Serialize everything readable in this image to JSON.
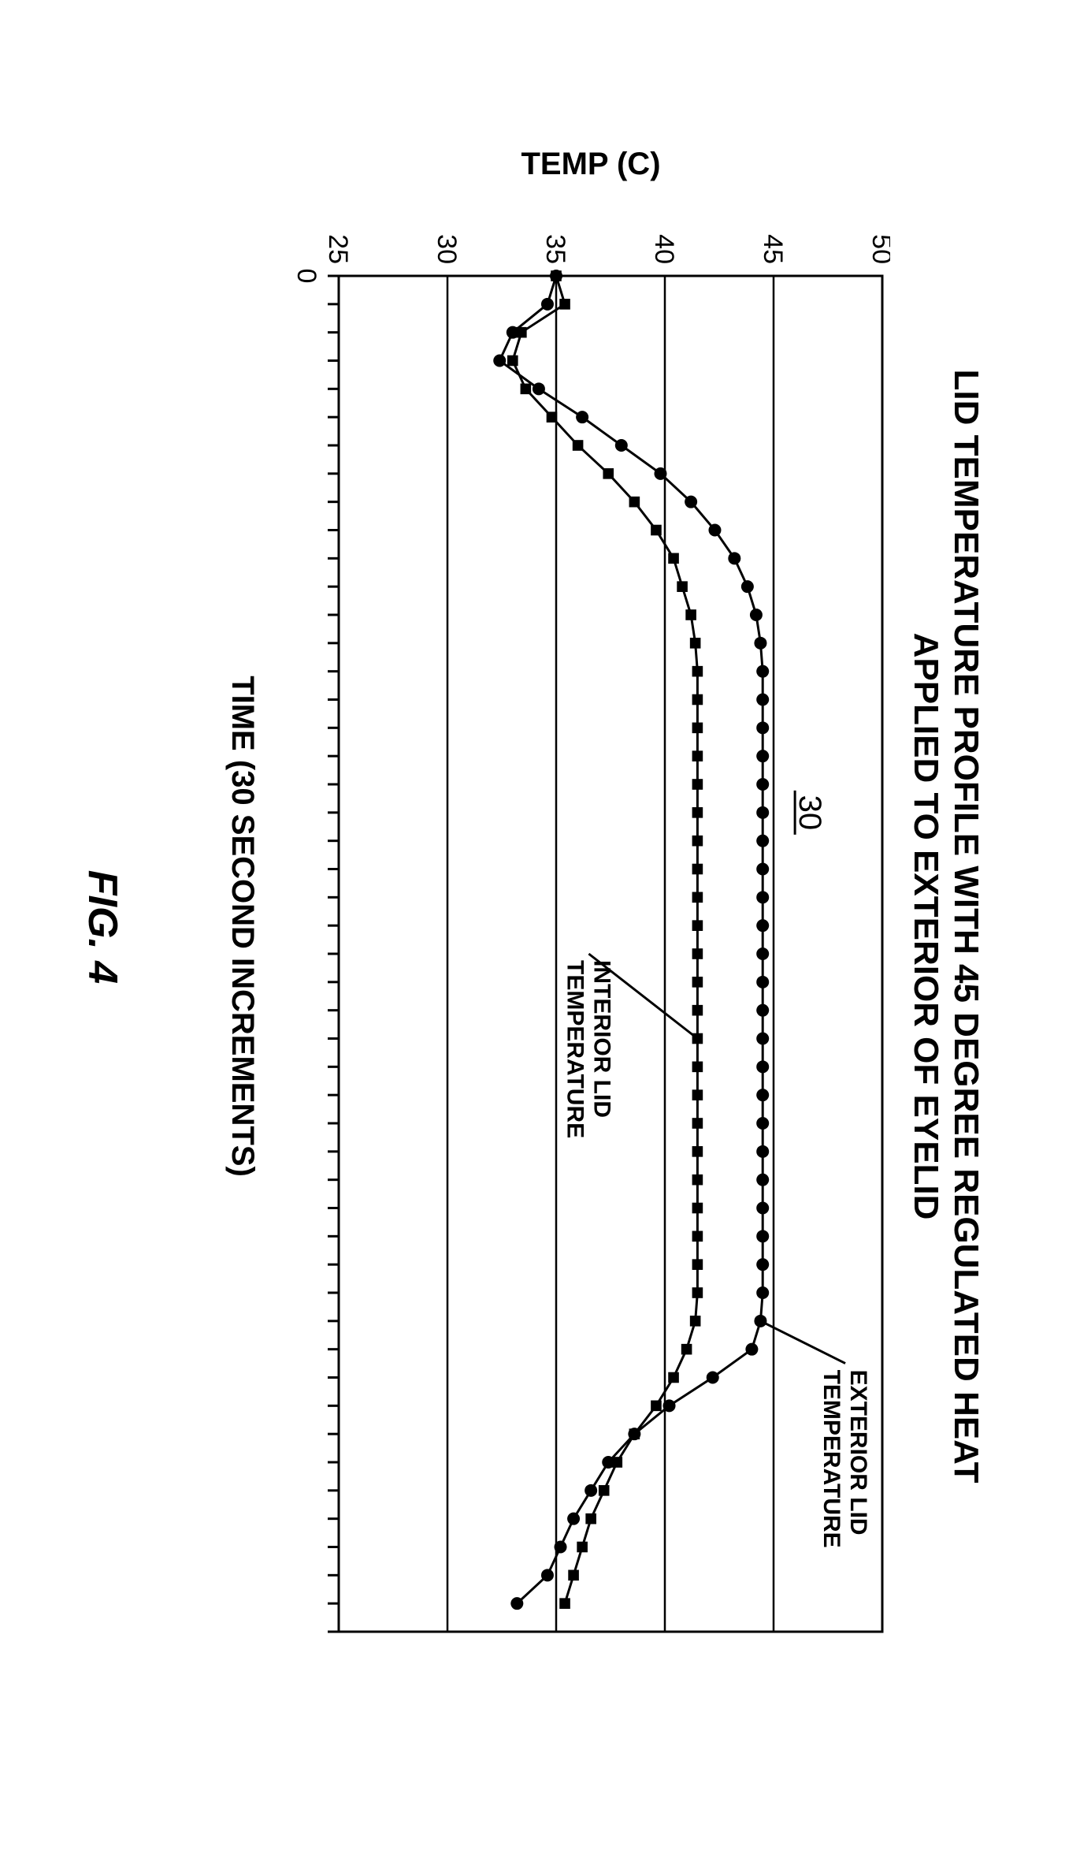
{
  "figure_label": "FIG. 4",
  "chart": {
    "type": "line",
    "title": "LID TEMPERATURE PROFILE WITH 45 DEGREE REGULATED HEAT\nAPPLIED TO EXTERIOR OF EYELID",
    "xlabel": "TIME (30 SECOND INCREMENTS)",
    "ylabel": "TEMP (C)",
    "ylim": [
      25,
      50
    ],
    "ytick_step": 5,
    "xlim": [
      0,
      48
    ],
    "x_tick_start_label": "0",
    "reference_number": "30",
    "background_color": "#ffffff",
    "axis_color": "#000000",
    "grid_color": "#000000",
    "axis_line_width": 3,
    "grid_line_width": 2.5,
    "tick_line_width": 3,
    "series_line_width": 3,
    "tick_font_size": 34,
    "axis_label_font_size": 40,
    "title_font_size": 44,
    "marker_size": 8,
    "series": [
      {
        "name": "EXTERIOR LID TEMPERATURE",
        "label": "EXTERIOR LID\nTEMPERATURE",
        "marker": "circle",
        "color": "#000000",
        "callout_from_x": 37,
        "callout_from_y": 44.4,
        "callout_label_x": 38.5,
        "callout_label_y": 48.3,
        "data": [
          {
            "x": 0,
            "y": 35.0
          },
          {
            "x": 1,
            "y": 34.6
          },
          {
            "x": 2,
            "y": 33.0
          },
          {
            "x": 3,
            "y": 32.4
          },
          {
            "x": 4,
            "y": 34.2
          },
          {
            "x": 5,
            "y": 36.2
          },
          {
            "x": 6,
            "y": 38.0
          },
          {
            "x": 7,
            "y": 39.8
          },
          {
            "x": 8,
            "y": 41.2
          },
          {
            "x": 9,
            "y": 42.3
          },
          {
            "x": 10,
            "y": 43.2
          },
          {
            "x": 11,
            "y": 43.8
          },
          {
            "x": 12,
            "y": 44.2
          },
          {
            "x": 13,
            "y": 44.4
          },
          {
            "x": 14,
            "y": 44.5
          },
          {
            "x": 15,
            "y": 44.5
          },
          {
            "x": 16,
            "y": 44.5
          },
          {
            "x": 17,
            "y": 44.5
          },
          {
            "x": 18,
            "y": 44.5
          },
          {
            "x": 19,
            "y": 44.5
          },
          {
            "x": 20,
            "y": 44.5
          },
          {
            "x": 21,
            "y": 44.5
          },
          {
            "x": 22,
            "y": 44.5
          },
          {
            "x": 23,
            "y": 44.5
          },
          {
            "x": 24,
            "y": 44.5
          },
          {
            "x": 25,
            "y": 44.5
          },
          {
            "x": 26,
            "y": 44.5
          },
          {
            "x": 27,
            "y": 44.5
          },
          {
            "x": 28,
            "y": 44.5
          },
          {
            "x": 29,
            "y": 44.5
          },
          {
            "x": 30,
            "y": 44.5
          },
          {
            "x": 31,
            "y": 44.5
          },
          {
            "x": 32,
            "y": 44.5
          },
          {
            "x": 33,
            "y": 44.5
          },
          {
            "x": 34,
            "y": 44.5
          },
          {
            "x": 35,
            "y": 44.5
          },
          {
            "x": 36,
            "y": 44.5
          },
          {
            "x": 37,
            "y": 44.4
          },
          {
            "x": 38,
            "y": 44.0
          },
          {
            "x": 39,
            "y": 42.2
          },
          {
            "x": 40,
            "y": 40.2
          },
          {
            "x": 41,
            "y": 38.6
          },
          {
            "x": 42,
            "y": 37.4
          },
          {
            "x": 43,
            "y": 36.6
          },
          {
            "x": 44,
            "y": 35.8
          },
          {
            "x": 45,
            "y": 35.2
          },
          {
            "x": 46,
            "y": 34.6
          },
          {
            "x": 47,
            "y": 33.2
          }
        ]
      },
      {
        "name": "INTERIOR LID TEMPERATURE",
        "label": "INTERIOR LID\nTEMPERATURE",
        "marker": "square",
        "color": "#000000",
        "callout_from_x": 27,
        "callout_from_y": 41.5,
        "callout_label_x": 24,
        "callout_label_y": 36.5,
        "data": [
          {
            "x": 0,
            "y": 35.0
          },
          {
            "x": 1,
            "y": 35.4
          },
          {
            "x": 2,
            "y": 33.4
          },
          {
            "x": 3,
            "y": 33.0
          },
          {
            "x": 4,
            "y": 33.6
          },
          {
            "x": 5,
            "y": 34.8
          },
          {
            "x": 6,
            "y": 36.0
          },
          {
            "x": 7,
            "y": 37.4
          },
          {
            "x": 8,
            "y": 38.6
          },
          {
            "x": 9,
            "y": 39.6
          },
          {
            "x": 10,
            "y": 40.4
          },
          {
            "x": 11,
            "y": 40.8
          },
          {
            "x": 12,
            "y": 41.2
          },
          {
            "x": 13,
            "y": 41.4
          },
          {
            "x": 14,
            "y": 41.5
          },
          {
            "x": 15,
            "y": 41.5
          },
          {
            "x": 16,
            "y": 41.5
          },
          {
            "x": 17,
            "y": 41.5
          },
          {
            "x": 18,
            "y": 41.5
          },
          {
            "x": 19,
            "y": 41.5
          },
          {
            "x": 20,
            "y": 41.5
          },
          {
            "x": 21,
            "y": 41.5
          },
          {
            "x": 22,
            "y": 41.5
          },
          {
            "x": 23,
            "y": 41.5
          },
          {
            "x": 24,
            "y": 41.5
          },
          {
            "x": 25,
            "y": 41.5
          },
          {
            "x": 26,
            "y": 41.5
          },
          {
            "x": 27,
            "y": 41.5
          },
          {
            "x": 28,
            "y": 41.5
          },
          {
            "x": 29,
            "y": 41.5
          },
          {
            "x": 30,
            "y": 41.5
          },
          {
            "x": 31,
            "y": 41.5
          },
          {
            "x": 32,
            "y": 41.5
          },
          {
            "x": 33,
            "y": 41.5
          },
          {
            "x": 34,
            "y": 41.5
          },
          {
            "x": 35,
            "y": 41.5
          },
          {
            "x": 36,
            "y": 41.5
          },
          {
            "x": 37,
            "y": 41.4
          },
          {
            "x": 38,
            "y": 41.0
          },
          {
            "x": 39,
            "y": 40.4
          },
          {
            "x": 40,
            "y": 39.6
          },
          {
            "x": 41,
            "y": 38.6
          },
          {
            "x": 42,
            "y": 37.8
          },
          {
            "x": 43,
            "y": 37.2
          },
          {
            "x": 44,
            "y": 36.6
          },
          {
            "x": 45,
            "y": 36.2
          },
          {
            "x": 46,
            "y": 35.8
          },
          {
            "x": 47,
            "y": 35.4
          }
        ]
      }
    ]
  }
}
